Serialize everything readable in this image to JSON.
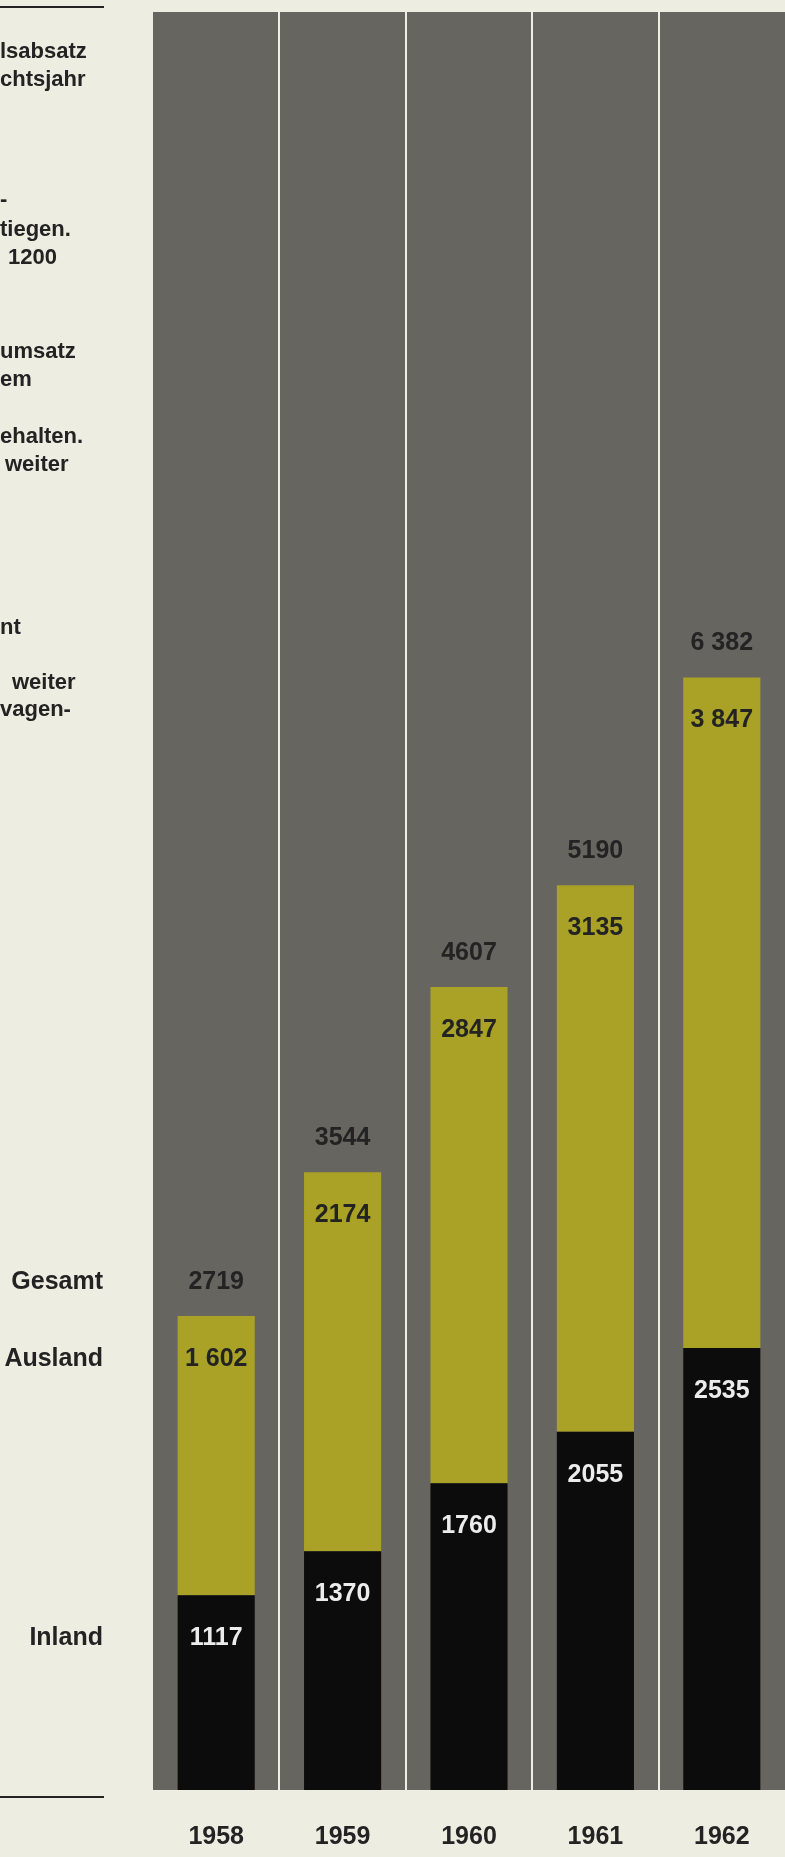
{
  "chart_data": {
    "type": "bar",
    "categories": [
      "1958",
      "1959",
      "1960",
      "1961",
      "1962"
    ],
    "series": [
      {
        "name": "Inland",
        "color": "#0c0c0c",
        "values": [
          1117,
          1370,
          1760,
          2055,
          2535
        ],
        "value_labels": [
          "1117",
          "1370",
          "1760",
          "2055",
          "2535"
        ]
      },
      {
        "name": "Ausland",
        "color": "#a9a226",
        "values": [
          1602,
          2174,
          2847,
          3135,
          3847
        ],
        "value_labels": [
          "1 602",
          "2174",
          "2847",
          "3135",
          "3 847"
        ]
      }
    ],
    "stacked": true,
    "totals": [
      "2719",
      "3544",
      "4607",
      "5190",
      "6 382"
    ],
    "ylim": [
      0,
      10200
    ],
    "grid": "x",
    "legend": false,
    "tick_labels": "x",
    "annotations": [
      "lsabsatz",
      "chtsjahr",
      "-",
      "tiegen.",
      "1200",
      "umsatz",
      "em",
      "ehalten.",
      "weiter",
      "nt",
      "weiter",
      "vagen-",
      "Gesamt"
    ]
  }
}
